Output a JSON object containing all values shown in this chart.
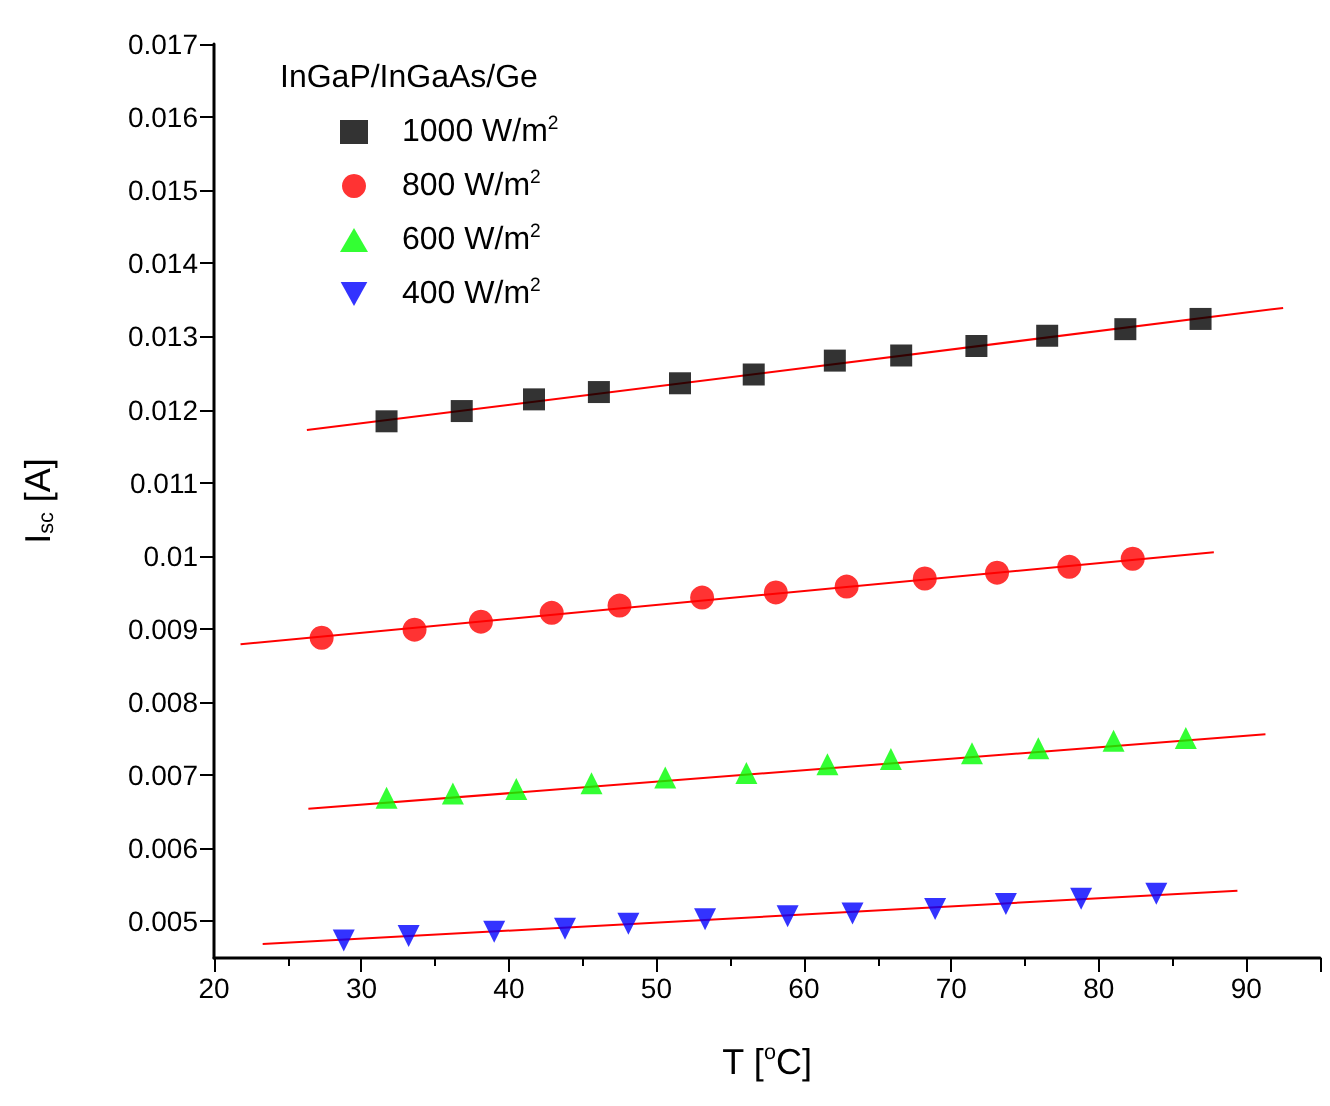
{
  "chart_data": {
    "type": "scatter",
    "xlabel": "T [$^{o}$C]",
    "ylabel": "I$_{sc}$ [A]",
    "legend_title": "InGaP/InGaAs/Ge",
    "xlim": [
      20,
      95
    ],
    "xticks": [
      20,
      30,
      40,
      50,
      60,
      70,
      80,
      90
    ],
    "ylim": [
      0.0045,
      0.017
    ],
    "yticks": [
      0.005,
      0.006,
      0.007,
      0.008,
      0.009,
      0.01,
      0.011,
      0.012,
      0.013,
      0.014,
      0.015,
      0.016,
      0.017
    ],
    "grid": false,
    "legend": "top left",
    "series": [
      {
        "name": "1000 W/m$^{2}$",
        "marker": "square",
        "color": "#000000",
        "x": [
          31.7,
          36.8,
          41.7,
          46.1,
          51.6,
          56.6,
          62.1,
          66.6,
          71.7,
          76.5,
          81.8,
          86.9
        ],
        "values": [
          0.01184,
          0.01198,
          0.01214,
          0.01224,
          0.01236,
          0.01248,
          0.01267,
          0.01274,
          0.01287,
          0.01301,
          0.0131,
          0.01324
        ]
      },
      {
        "name": "800 W/m$^{2}$",
        "marker": "circle",
        "color": "#ff0000",
        "x": [
          27.3,
          33.6,
          38.1,
          42.9,
          47.5,
          53.1,
          58.1,
          62.9,
          68.2,
          73.1,
          78.0,
          82.3
        ],
        "values": [
          0.00888,
          0.00899,
          0.0091,
          0.00922,
          0.00932,
          0.00943,
          0.0095,
          0.00958,
          0.00969,
          0.00977,
          0.00985,
          0.00996
        ]
      },
      {
        "name": "600 W/m$^{2}$",
        "marker": "triangle",
        "color": "#00ff00",
        "x": [
          31.7,
          36.2,
          40.5,
          45.6,
          50.6,
          56.1,
          61.6,
          65.9,
          71.4,
          75.9,
          81.0,
          85.9
        ],
        "values": [
          0.00669,
          0.00675,
          0.00681,
          0.00689,
          0.00697,
          0.00703,
          0.00715,
          0.00722,
          0.0073,
          0.00737,
          0.00747,
          0.00751
        ]
      },
      {
        "name": "400 W/m$^{2}$",
        "marker": "triangle-down",
        "color": "#0000ff",
        "x": [
          28.8,
          33.2,
          39.0,
          43.8,
          48.1,
          53.3,
          58.9,
          63.3,
          68.9,
          73.7,
          78.8,
          83.9
        ],
        "values": [
          0.00474,
          0.0048,
          0.00486,
          0.0049,
          0.00497,
          0.00503,
          0.00507,
          0.00511,
          0.00517,
          0.00524,
          0.00531,
          0.00538
        ]
      },
      {
        "type": "line",
        "marker": "none",
        "color": "#ff0000",
        "x": [
          26.3,
          92.5
        ],
        "values": [
          0.01172,
          0.01339
        ]
      },
      {
        "type": "line",
        "marker": "none",
        "color": "#ff0000",
        "x": [
          21.8,
          87.8
        ],
        "values": [
          0.00879,
          0.01005
        ]
      },
      {
        "type": "line",
        "marker": "none",
        "color": "#ff0000",
        "x": [
          26.4,
          91.3
        ],
        "values": [
          0.00654,
          0.00756
        ]
      },
      {
        "type": "line",
        "marker": "none",
        "color": "#ff0000",
        "x": [
          23.3,
          89.4
        ],
        "values": [
          0.00469,
          0.00542
        ]
      }
    ]
  }
}
